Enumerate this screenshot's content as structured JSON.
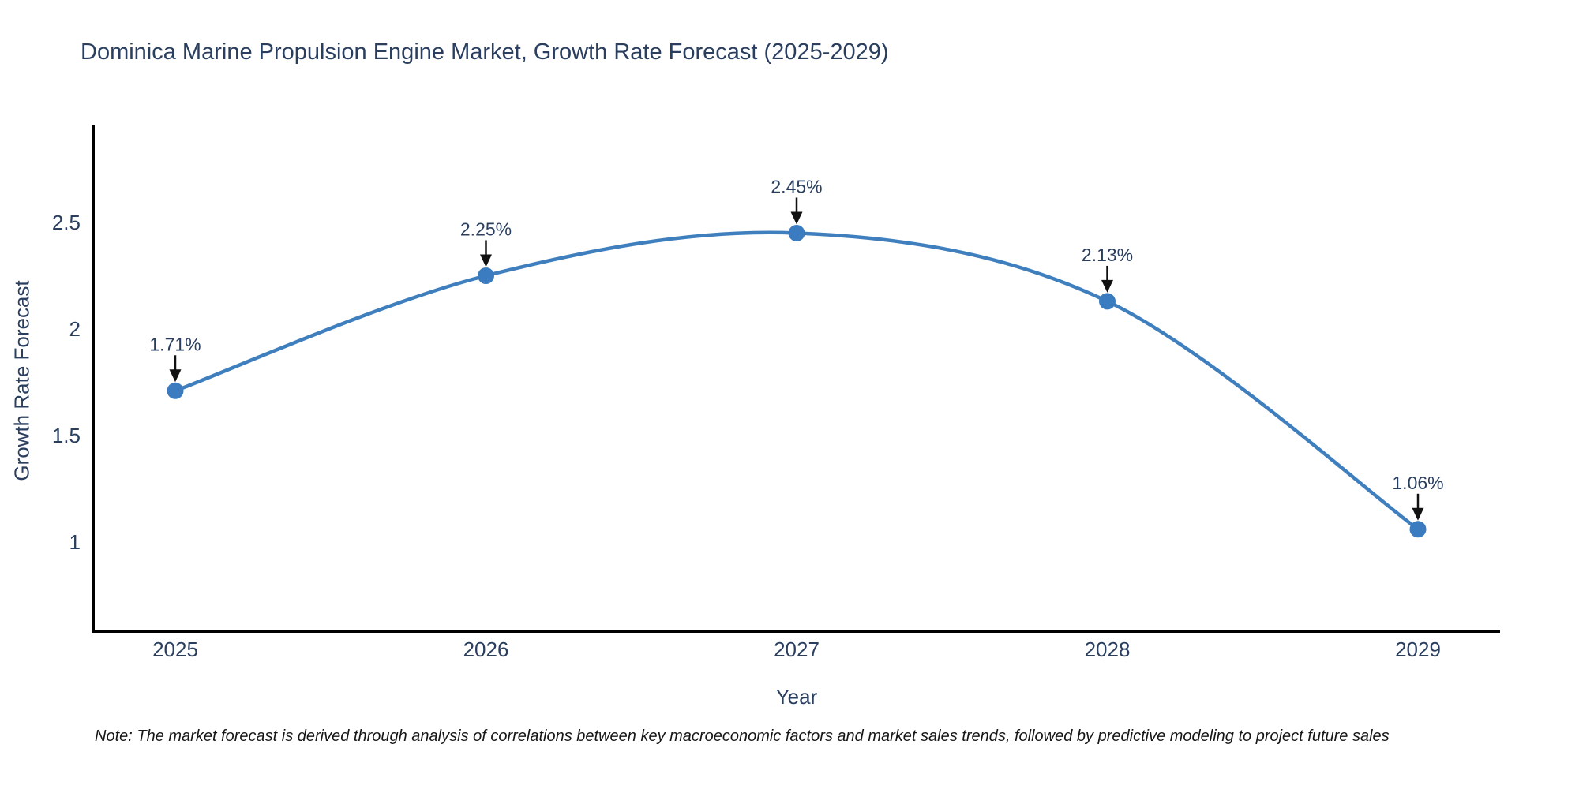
{
  "title": "Dominica Marine Propulsion Engine Market, Growth Rate Forecast (2025-2029)",
  "note": "Note: The market forecast is derived through analysis of correlations between key macroeconomic factors and market sales trends, followed by predictive modeling to project future sales",
  "chart_data": {
    "type": "line",
    "line_shape": "spline",
    "title": "Dominica Marine Propulsion Engine Market, Growth Rate Forecast (2025-2029)",
    "xlabel": "Year",
    "ylabel": "Growth Rate Forecast",
    "categories": [
      "2025",
      "2026",
      "2027",
      "2028",
      "2029"
    ],
    "values": [
      1.71,
      2.25,
      2.45,
      2.13,
      1.06
    ],
    "point_labels": [
      "1.71%",
      "2.25%",
      "2.45%",
      "2.13%",
      "1.06%"
    ],
    "yticks": [
      1,
      1.5,
      2,
      2.5
    ],
    "ytick_labels": [
      "1",
      "1.5",
      "2",
      "2.5"
    ],
    "ylim": [
      0.58,
      2.95
    ],
    "grid": false,
    "legend": "none",
    "markers": true,
    "annotations_arrows": true,
    "colors": {
      "series": "#3f7fbe",
      "marker": "#3a7cbf",
      "axis_line": "#000000",
      "text": "#2a3f5f",
      "arrow": "#111111",
      "background": "#ffffff"
    }
  }
}
